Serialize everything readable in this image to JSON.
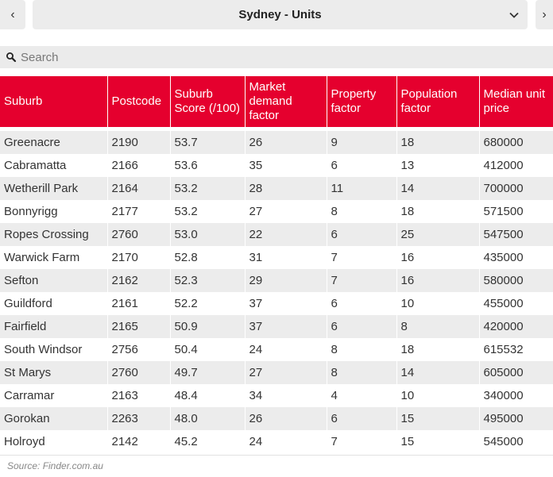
{
  "selector": {
    "label": "Sydney - Units",
    "prev_glyph": "‹",
    "next_glyph": "›"
  },
  "search": {
    "placeholder": "Search",
    "value": ""
  },
  "table": {
    "headers": [
      "Suburb",
      "Postcode",
      "Suburb Score (/100)",
      "Market demand factor",
      "Property factor",
      "Population factor",
      "Median unit price"
    ],
    "rows": [
      [
        "Greenacre",
        "2190",
        "53.7",
        "26",
        "9",
        "18",
        "680000"
      ],
      [
        "Cabramatta",
        "2166",
        "53.6",
        "35",
        "6",
        "13",
        "412000"
      ],
      [
        "Wetherill Park",
        "2164",
        "53.2",
        "28",
        "11",
        "14",
        "700000"
      ],
      [
        "Bonnyrigg",
        "2177",
        "53.2",
        "27",
        "8",
        "18",
        "571500"
      ],
      [
        "Ropes Crossing",
        "2760",
        "53.0",
        "22",
        "6",
        "25",
        "547500"
      ],
      [
        "Warwick Farm",
        "2170",
        "52.8",
        "31",
        "7",
        "16",
        "435000"
      ],
      [
        "Sefton",
        "2162",
        "52.3",
        "29",
        "7",
        "16",
        "580000"
      ],
      [
        "Guildford",
        "2161",
        "52.2",
        "37",
        "6",
        "10",
        "455000"
      ],
      [
        "Fairfield",
        "2165",
        "50.9",
        "37",
        "6",
        "8",
        "420000"
      ],
      [
        "South Windsor",
        "2756",
        "50.4",
        "24",
        "8",
        "18",
        "615532"
      ],
      [
        "St Marys",
        "2760",
        "49.7",
        "27",
        "8",
        "14",
        "605000"
      ],
      [
        "Carramar",
        "2163",
        "48.4",
        "34",
        "4",
        "10",
        "340000"
      ],
      [
        "Gorokan",
        "2263",
        "48.0",
        "26",
        "6",
        "15",
        "495000"
      ],
      [
        "Holroyd",
        "2142",
        "45.2",
        "24",
        "7",
        "15",
        "545000"
      ]
    ]
  },
  "source": "Source: Finder.com.au",
  "colors": {
    "header_bg": "#e5002e",
    "stripe": "#ececec"
  }
}
